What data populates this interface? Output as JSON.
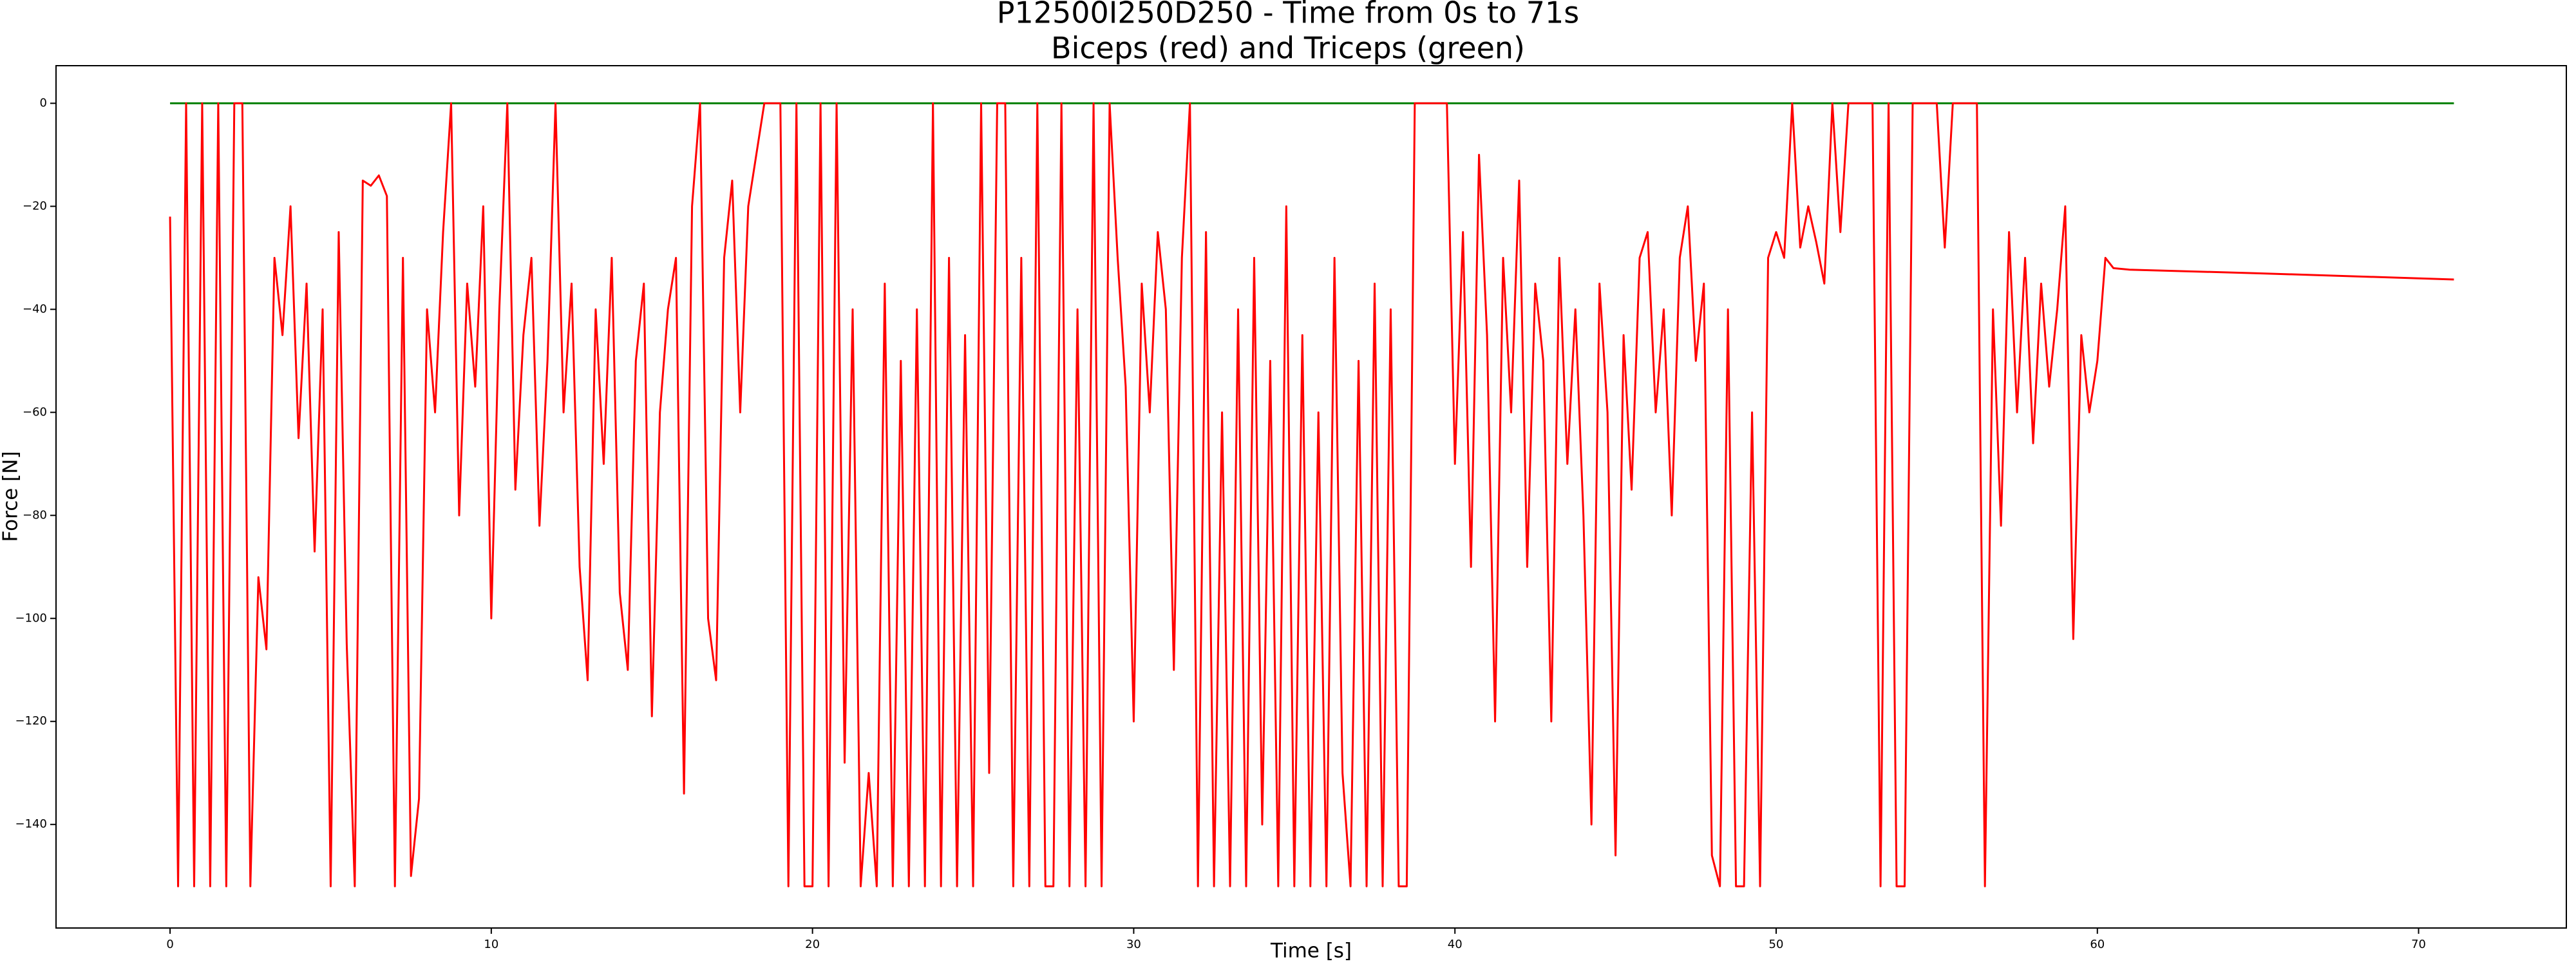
{
  "chart_data": {
    "type": "line",
    "title": "P12500I250D250 - Time from 0s to 71s",
    "subtitle": "Biceps (red) and Triceps (green)",
    "x_label": "Time [s]",
    "y_label": "Force [N]",
    "xlim": [
      -3.55,
      74.6
    ],
    "ylim": [
      -160.1,
      7.3
    ],
    "xticks": [
      0,
      10,
      20,
      30,
      40,
      50,
      60,
      70
    ],
    "yticks": [
      {
        "value": -140,
        "label": "−140"
      },
      {
        "value": -120,
        "label": "−120"
      },
      {
        "value": -100,
        "label": "−100"
      },
      {
        "value": -80,
        "label": "−80"
      },
      {
        "value": -60,
        "label": "−60"
      },
      {
        "value": -40,
        "label": "−40"
      },
      {
        "value": -20,
        "label": "−20"
      },
      0
    ],
    "series": [
      {
        "name": "Triceps",
        "color": "#008000",
        "x": [
          0,
          71.1
        ],
        "values": [
          0,
          0
        ]
      },
      {
        "name": "Biceps",
        "color": "#ff0000",
        "x": [
          0,
          0.25,
          0.5,
          0.75,
          1,
          1.25,
          1.5,
          1.75,
          2,
          2.25,
          2.5,
          2.75,
          3,
          3.25,
          3.5,
          3.75,
          4,
          4.25,
          4.5,
          4.75,
          5,
          5.25,
          5.5,
          5.75,
          6,
          6.25,
          6.5,
          6.75,
          7,
          7.25,
          7.5,
          7.75,
          8,
          8.25,
          8.5,
          8.75,
          9,
          9.25,
          9.5,
          9.75,
          10,
          10.25,
          10.5,
          10.75,
          11,
          11.25,
          11.5,
          11.75,
          12,
          12.25,
          12.5,
          12.75,
          13,
          13.25,
          13.5,
          13.75,
          14,
          14.25,
          14.5,
          14.75,
          15,
          15.25,
          15.5,
          15.75,
          16,
          16.25,
          16.5,
          16.75,
          17,
          17.25,
          17.5,
          17.75,
          18,
          18.25,
          18.5,
          18.75,
          19,
          19.25,
          19.5,
          19.75,
          20,
          20.25,
          20.5,
          20.75,
          21,
          21.25,
          21.5,
          21.75,
          22,
          22.25,
          22.5,
          22.75,
          23,
          23.25,
          23.5,
          23.75,
          24,
          24.25,
          24.5,
          24.75,
          25,
          25.25,
          25.5,
          25.75,
          26,
          26.25,
          26.5,
          26.75,
          27,
          27.25,
          27.5,
          27.75,
          28,
          28.25,
          28.5,
          28.75,
          29,
          29.25,
          29.5,
          29.75,
          30,
          30.25,
          30.5,
          30.75,
          31,
          31.25,
          31.5,
          31.75,
          32,
          32.25,
          32.5,
          32.75,
          33,
          33.25,
          33.5,
          33.75,
          34,
          34.25,
          34.5,
          34.75,
          35,
          35.25,
          35.5,
          35.75,
          36,
          36.25,
          36.5,
          36.75,
          37,
          37.25,
          37.5,
          37.75,
          38,
          38.25,
          38.5,
          38.75,
          39,
          39.25,
          39.5,
          39.75,
          40,
          40.25,
          40.5,
          40.75,
          41,
          41.25,
          41.5,
          41.75,
          42,
          42.25,
          42.5,
          42.75,
          43,
          43.25,
          43.5,
          43.75,
          44,
          44.25,
          44.5,
          44.75,
          45,
          45.25,
          45.5,
          45.75,
          46,
          46.25,
          46.5,
          46.75,
          47,
          47.25,
          47.5,
          47.75,
          48,
          48.25,
          48.5,
          48.75,
          49,
          49.25,
          49.5,
          49.75,
          50,
          50.25,
          50.5,
          50.75,
          51,
          51.25,
          51.5,
          51.75,
          52,
          52.25,
          52.5,
          52.75,
          53,
          53.25,
          53.5,
          53.75,
          54,
          54.25,
          54.5,
          54.75,
          55,
          55.25,
          55.5,
          55.75,
          56,
          56.25,
          56.5,
          56.75,
          57,
          57.25,
          57.5,
          57.75,
          58,
          58.25,
          58.5,
          58.75,
          59,
          59.25,
          59.5,
          59.75,
          60,
          60.25,
          60.5,
          61,
          65,
          71.1
        ],
        "values": [
          -22,
          -152,
          0,
          -152,
          0,
          -152,
          0,
          -152,
          0,
          0,
          -152,
          -92,
          -106,
          -30,
          -45,
          -20,
          -65,
          -35,
          -87,
          -40,
          -152,
          -25,
          -105,
          -152,
          -15,
          -16,
          -14,
          -18,
          -152,
          -30,
          -150,
          -135,
          -40,
          -60,
          -25,
          0,
          -80,
          -35,
          -55,
          -20,
          -100,
          -40,
          0,
          -75,
          -45,
          -30,
          -82,
          -50,
          0,
          -60,
          -35,
          -90,
          -112,
          -40,
          -70,
          -30,
          -95,
          -110,
          -50,
          -35,
          -119,
          -60,
          -40,
          -30,
          -134,
          -20,
          0,
          -100,
          -112,
          -30,
          -15,
          -60,
          -20,
          -10,
          0,
          0,
          0,
          -152,
          0,
          -152,
          -152,
          0,
          -152,
          0,
          -128,
          -40,
          -152,
          -130,
          -152,
          -35,
          -152,
          -50,
          -152,
          -40,
          -152,
          0,
          -152,
          -30,
          -152,
          -45,
          -152,
          0,
          -130,
          0,
          0,
          -152,
          -30,
          -152,
          0,
          -152,
          -152,
          0,
          -152,
          -40,
          -152,
          0,
          -152,
          0,
          -30,
          -55,
          -120,
          -35,
          -60,
          -25,
          -40,
          -110,
          -30,
          0,
          -152,
          -25,
          -152,
          -60,
          -152,
          -40,
          -152,
          -30,
          -140,
          -50,
          -152,
          -20,
          -152,
          -45,
          -152,
          -60,
          -152,
          -30,
          -130,
          -152,
          -50,
          -152,
          -35,
          -152,
          -40,
          -152,
          -152,
          0,
          0,
          0,
          0,
          0,
          -70,
          -25,
          -90,
          -10,
          -45,
          -120,
          -30,
          -60,
          -15,
          -90,
          -35,
          -50,
          -120,
          -30,
          -70,
          -40,
          -80,
          -140,
          -35,
          -60,
          -146,
          -45,
          -75,
          -30,
          -25,
          -60,
          -40,
          -80,
          -30,
          -20,
          -50,
          -35,
          -146,
          -152,
          -40,
          -152,
          -152,
          -60,
          -152,
          -30,
          -25,
          -30,
          0,
          -28,
          -20,
          -27,
          -35,
          0,
          -25,
          0,
          0,
          0,
          0,
          -152,
          0,
          -152,
          -152,
          0,
          0,
          0,
          0,
          -28,
          0,
          0,
          0,
          0,
          -152,
          -40,
          -82,
          -25,
          -60,
          -30,
          -66,
          -35,
          -55,
          -40,
          -20,
          -104,
          -45,
          -60,
          -50,
          -30,
          -32,
          -32.3,
          -33,
          -34.2
        ]
      }
    ]
  }
}
